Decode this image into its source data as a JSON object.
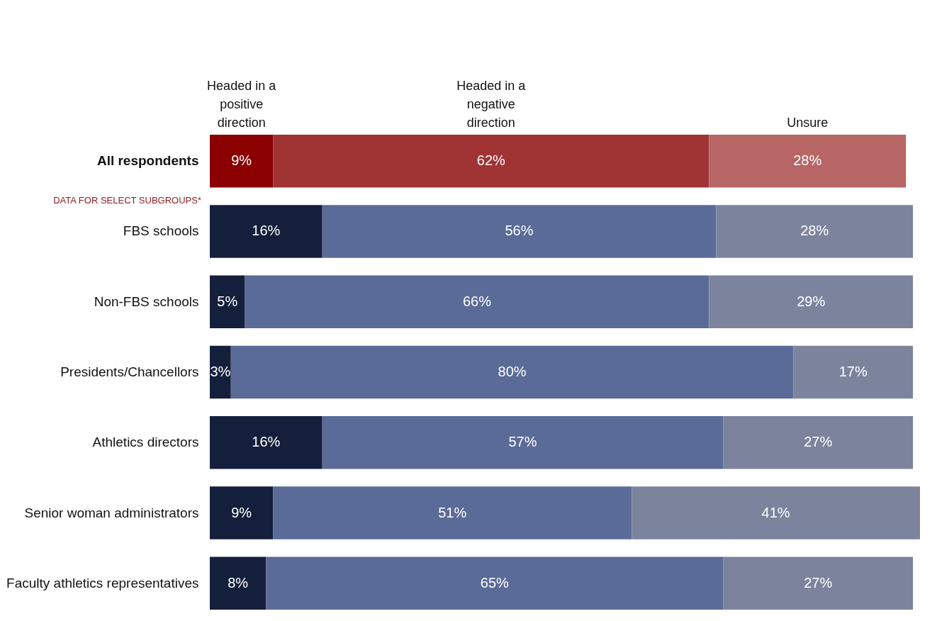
{
  "chart_data": {
    "type": "bar",
    "orientation": "horizontal",
    "stacked": true,
    "legend": "top",
    "tick_labels": "y",
    "categories": [
      "All respondents",
      "FBS schools",
      "Non-FBS schools",
      "Presidents/Chancellors",
      "Athletics directors",
      "Senior woman administrators",
      "Faculty athletics representatives"
    ],
    "series": [
      {
        "name": "Headed in a positive direction",
        "colors": [
          "#8b0000",
          "#141f3b",
          "#141f3b",
          "#141f3b",
          "#141f3b",
          "#141f3b",
          "#141f3b"
        ],
        "values": [
          9,
          16,
          5,
          3,
          16,
          9,
          8
        ],
        "value_labels": [
          "9%",
          "16%",
          "5%",
          "3%",
          "16%",
          "9%",
          "8%"
        ]
      },
      {
        "name": "Headed in a negative direction",
        "colors": [
          "#a03334",
          "#5a6b98",
          "#5a6b98",
          "#5a6b98",
          "#5a6b98",
          "#5a6b98",
          "#5a6b98"
        ],
        "values": [
          62,
          56,
          66,
          80,
          57,
          51,
          65
        ],
        "value_labels": [
          "62%",
          "56%",
          "66%",
          "80%",
          "57%",
          "51%",
          "65%"
        ]
      },
      {
        "name": "Unsure",
        "colors": [
          "#b86565",
          "#7b849c",
          "#7b849c",
          "#7b849c",
          "#7b849c",
          "#7b849c",
          "#7b849c"
        ],
        "values": [
          28,
          28,
          29,
          17,
          27,
          41,
          27
        ],
        "value_labels": [
          "28%",
          "28%",
          "29%",
          "17%",
          "27%",
          "41%",
          "27%"
        ]
      }
    ],
    "annotations": [
      "DATA FOR SELECT SUBGROUPS*"
    ]
  }
}
